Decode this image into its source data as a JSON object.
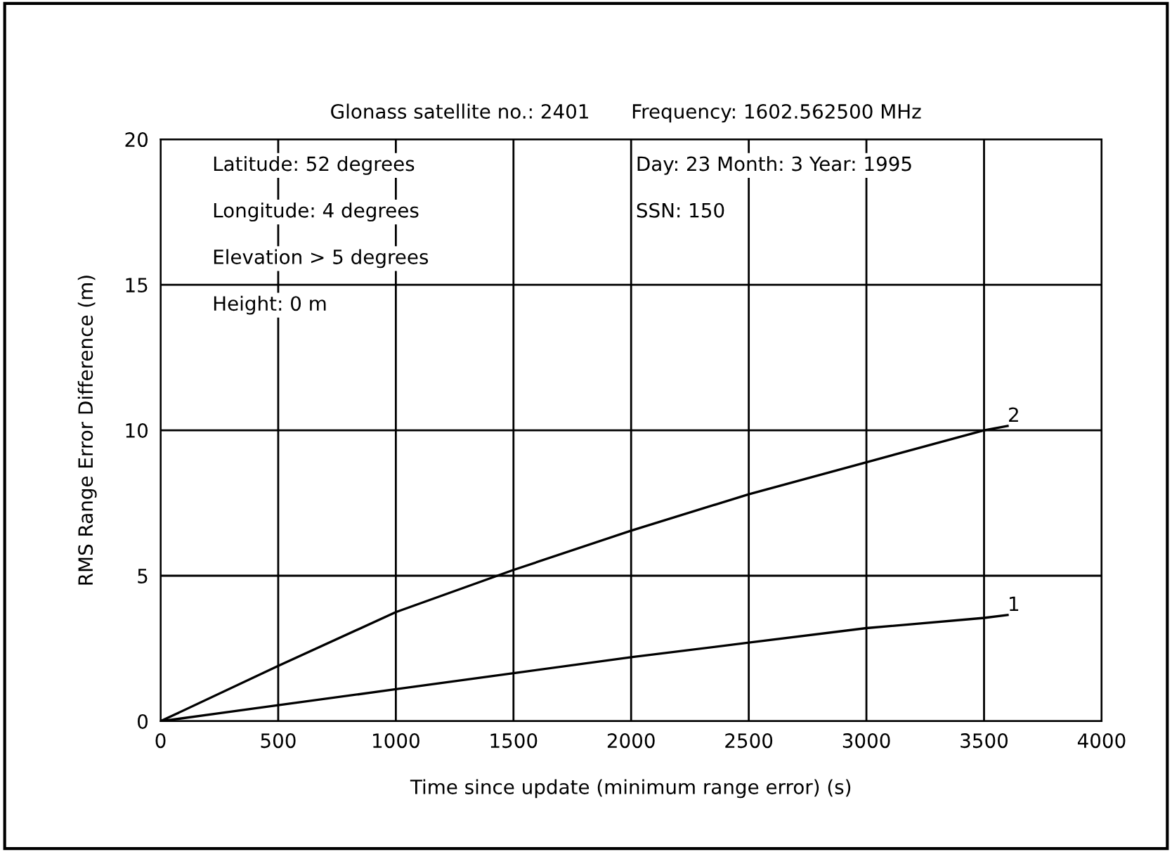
{
  "chart_data": {
    "type": "line",
    "xlabel": "Time since update (minimum range error) (s)",
    "ylabel": "RMS Range Error Difference (m)",
    "annotations": [
      "Glonass satellite no.: 2401",
      "Frequency: 1602.562500 MHz",
      "Latitude: 52 degrees",
      "Longitude: 4 degrees",
      "Elevation > 5 degrees",
      "Height: 0 m",
      "Day: 23 Month: 3 Year: 1995",
      "SSN: 150"
    ],
    "series": [
      {
        "name": "1",
        "color": "#000000",
        "x": [
          0,
          500,
          1000,
          1500,
          2000,
          2500,
          3000,
          3500,
          3600
        ],
        "values": [
          0,
          0.55,
          1.1,
          1.65,
          2.2,
          2.7,
          3.2,
          3.55,
          3.65
        ]
      },
      {
        "name": "2",
        "color": "#000000",
        "x": [
          0,
          500,
          1000,
          1500,
          2000,
          2500,
          3000,
          3500,
          3600
        ],
        "values": [
          0,
          1.9,
          3.75,
          5.2,
          6.55,
          7.8,
          8.9,
          10.0,
          10.15
        ]
      }
    ],
    "xlim": [
      0,
      4000
    ],
    "xticks": [
      0,
      500,
      1000,
      1500,
      2000,
      2500,
      3000,
      3500,
      4000
    ],
    "ylim": [
      0,
      20
    ],
    "yticks": [
      0,
      5,
      10,
      15,
      20
    ],
    "grid": true,
    "legend": false,
    "marker": "none",
    "line_style": "solid"
  }
}
